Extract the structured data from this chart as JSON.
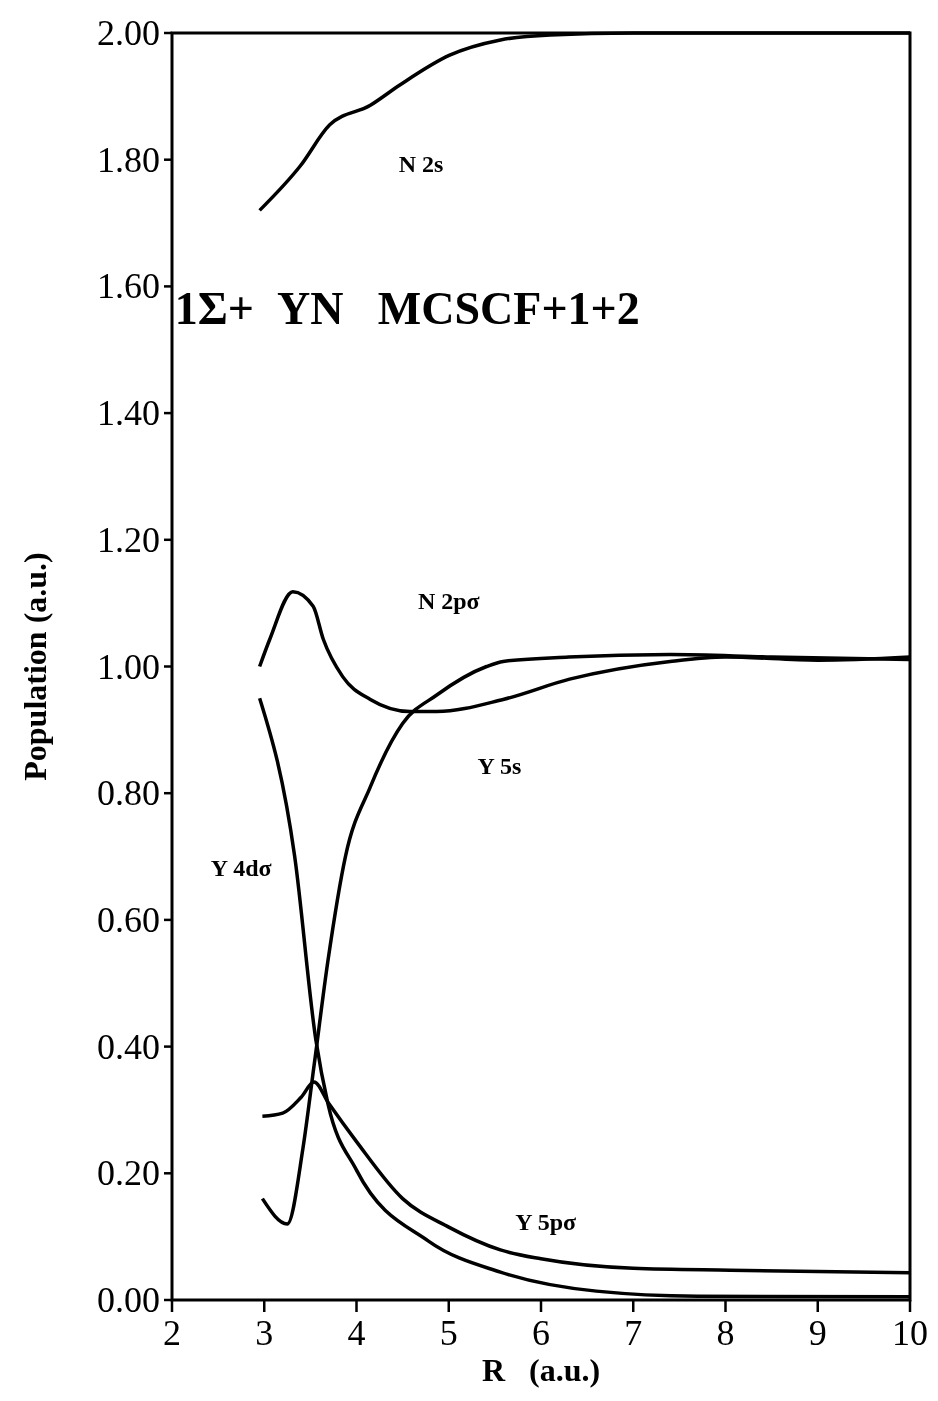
{
  "chart_data": {
    "type": "line",
    "title": "1Σ+  YN   MCSCF+1+2",
    "xlabel": "R   (a.u.)",
    "ylabel": "Population  (a.u.)",
    "xlim": [
      2,
      10
    ],
    "xticks": [
      2,
      3,
      4,
      5,
      6,
      7,
      8,
      9,
      10
    ],
    "ylim": [
      0,
      2
    ],
    "yticks": [
      {
        "value": 0,
        "label": "0.00"
      },
      {
        "value": 0.2,
        "label": "0.20"
      },
      {
        "value": 0.4,
        "label": "0.40"
      },
      {
        "value": 0.6,
        "label": "0.60"
      },
      {
        "value": 0.8,
        "label": "0.80"
      },
      {
        "value": 1,
        "label": "1.00"
      },
      {
        "value": 1.2,
        "label": "1.20"
      },
      {
        "value": 1.4,
        "label": "1.40"
      },
      {
        "value": 1.6,
        "label": "1.60"
      },
      {
        "value": 1.8,
        "label": "1.80"
      },
      {
        "value": 2,
        "label": "2.00"
      }
    ],
    "grid": false,
    "marker": "none",
    "line_style": "solid",
    "series": [
      {
        "name": "N 2s",
        "color": "#000000",
        "x": [
          2.95,
          3.39,
          3.71,
          4.15,
          4.47,
          5.01,
          5.56,
          6.1,
          7,
          8,
          9,
          10
        ],
        "values": [
          1.72,
          1.79,
          1.855,
          1.886,
          1.918,
          1.965,
          1.989,
          1.997,
          2.0,
          2.0,
          2.0,
          2.0
        ]
      },
      {
        "name": "N 2pσ",
        "color": "#000000",
        "x": [
          2.98,
          3.25,
          3.42,
          3.54,
          3.69,
          3.88,
          4.15,
          4.5,
          4.87,
          5.41,
          5.59,
          6.3,
          7.4,
          8.5,
          10
        ],
        "values": [
          0.16,
          0.12,
          0.24,
          0.37,
          0.535,
          0.7,
          0.81,
          0.91,
          0.955,
          1.0,
          1.008,
          1.015,
          1.019,
          1.015,
          1.011
        ]
      },
      {
        "name": "Y 5s",
        "color": "#000000",
        "x": [
          2.95,
          3.06,
          3.31,
          3.53,
          3.64,
          3.85,
          4.15,
          4.58,
          4.87,
          5.59,
          6.31,
          7.4,
          8,
          9,
          10
        ],
        "values": [
          1.0,
          1.043,
          1.118,
          1.095,
          1.043,
          0.984,
          0.948,
          0.929,
          0.929,
          0.948,
          0.98,
          1.008,
          1.015,
          1.01,
          1.015
        ]
      },
      {
        "name": "Y 4dσ",
        "color": "#000000",
        "x": [
          2.95,
          3.33,
          3.56,
          3.69,
          4.0,
          4.78,
          5.56,
          6.6,
          7.7,
          10
        ],
        "values": [
          0.95,
          0.7,
          0.41,
          0.31,
          0.205,
          0.093,
          0.044,
          0.014,
          0.006,
          0.005
        ]
      },
      {
        "name": "Y 5pσ",
        "color": "#000000",
        "x": [
          2.98,
          3.2,
          3.4,
          3.54,
          3.7,
          4.0,
          4.5,
          5.0,
          5.56,
          6.0,
          7.0,
          8.05,
          9.0,
          10
        ],
        "values": [
          0.29,
          0.295,
          0.32,
          0.344,
          0.31,
          0.25,
          0.16,
          0.115,
          0.079,
          0.065,
          0.05,
          0.047,
          0.045,
          0.043
        ]
      }
    ]
  }
}
